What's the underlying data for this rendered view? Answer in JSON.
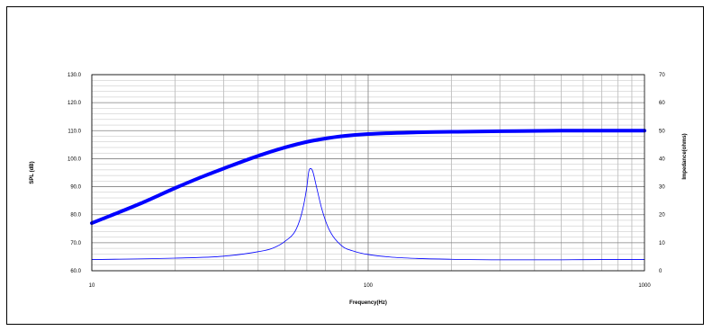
{
  "chart_data": {
    "type": "line",
    "xscale": "log",
    "xlim": [
      10,
      1000
    ],
    "ylim_left": [
      60,
      130
    ],
    "ylim_right": [
      0,
      70
    ],
    "grid": true,
    "xlabel": "Frequency(Hz)",
    "ylabel_left": "SPL (dB)",
    "ylabel_right": "Impedance(ohms)",
    "x_tick_labels": [
      "10",
      "100",
      "1000"
    ],
    "y_left_tick_labels": [
      "60.0",
      "70.0",
      "80.0",
      "90.0",
      "100.0",
      "110.0",
      "120.0",
      "130.0"
    ],
    "y_right_tick_labels": [
      "0",
      "10",
      "20",
      "30",
      "40",
      "50",
      "60",
      "70"
    ],
    "series": [
      {
        "axis": "left",
        "color": "#0000ff",
        "style": "thick",
        "points": [
          [
            10,
            77
          ],
          [
            15,
            84
          ],
          [
            20,
            89.5
          ],
          [
            25,
            93.5
          ],
          [
            30,
            96.5
          ],
          [
            40,
            101
          ],
          [
            50,
            104
          ],
          [
            60,
            106
          ],
          [
            70,
            107.2
          ],
          [
            80,
            108
          ],
          [
            100,
            108.8
          ],
          [
            150,
            109.4
          ],
          [
            200,
            109.6
          ],
          [
            300,
            109.8
          ],
          [
            500,
            110
          ],
          [
            1000,
            110
          ]
        ]
      },
      {
        "axis": "right",
        "color": "#0000ff",
        "style": "thin",
        "points": [
          [
            10,
            4
          ],
          [
            20,
            4.5
          ],
          [
            30,
            5.2
          ],
          [
            40,
            6.8
          ],
          [
            45,
            8
          ],
          [
            50,
            10.5
          ],
          [
            55,
            15
          ],
          [
            58,
            22
          ],
          [
            60,
            30
          ],
          [
            61,
            35.5
          ],
          [
            62,
            36.5
          ],
          [
            63,
            35.5
          ],
          [
            65,
            30
          ],
          [
            68,
            22
          ],
          [
            72,
            15
          ],
          [
            80,
            9
          ],
          [
            90,
            6.8
          ],
          [
            100,
            5.8
          ],
          [
            120,
            4.9
          ],
          [
            150,
            4.4
          ],
          [
            200,
            4.1
          ],
          [
            300,
            3.9
          ],
          [
            500,
            3.9
          ],
          [
            700,
            4
          ],
          [
            1000,
            4
          ]
        ]
      }
    ]
  }
}
